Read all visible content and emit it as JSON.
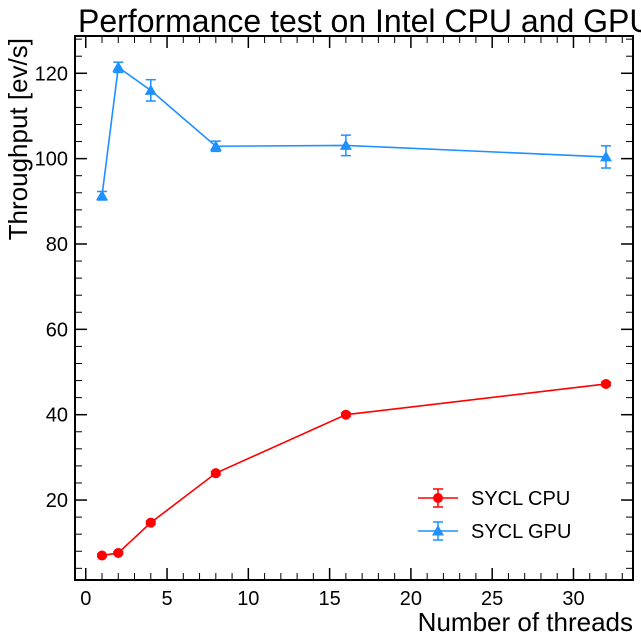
{
  "chart_data": {
    "type": "line",
    "title": "Performance test on Intel CPU and GPU",
    "xlabel": "Number of threads",
    "ylabel": "Throughput [ev/s]",
    "xlim": [
      -0.6,
      33.6
    ],
    "ylim": [
      1.5,
      128.5
    ],
    "xticks": [
      0,
      5,
      10,
      15,
      20,
      25,
      30
    ],
    "yticks": [
      20,
      40,
      60,
      80,
      100,
      120
    ],
    "legend_position": "lower-right",
    "grid": false,
    "series": [
      {
        "name": "SYCL CPU",
        "color": "#ff0000",
        "marker": "circle",
        "x": [
          1,
          2,
          4,
          8,
          16,
          32
        ],
        "y": [
          7.0,
          7.6,
          14.7,
          26.3,
          40.0,
          47.2
        ],
        "yerr": [
          0.3,
          0.3,
          0.4,
          0.4,
          0.4,
          0.4
        ]
      },
      {
        "name": "SYCL GPU",
        "color": "#1e90ff",
        "marker": "triangle",
        "x": [
          1,
          2,
          4,
          8,
          16,
          32
        ],
        "y": [
          91.3,
          121.4,
          116.0,
          102.9,
          103.1,
          100.4
        ],
        "yerr": [
          1.0,
          1.2,
          2.5,
          1.2,
          2.4,
          2.6
        ]
      }
    ]
  }
}
